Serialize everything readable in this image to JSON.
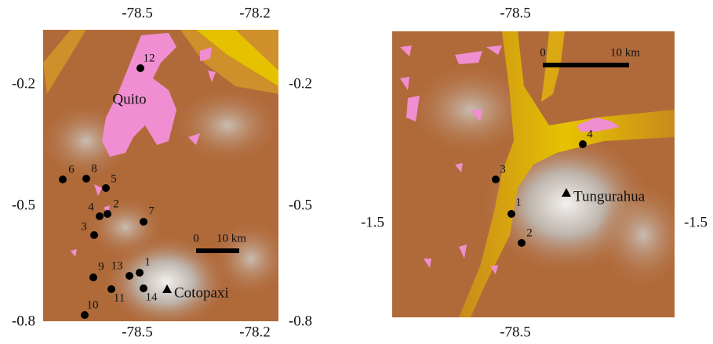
{
  "panels": [
    {
      "top_ticks": [
        "-78.5",
        "-78.2"
      ],
      "bottom_ticks": [
        "-78.5",
        "-78.2"
      ],
      "left_ticks": [
        "-0.2",
        "-0.5",
        "-0.8"
      ],
      "right_ticks": [
        "-0.2",
        "-0.5",
        "-0.8"
      ],
      "places": [
        "Quito",
        "Cotopaxi"
      ],
      "sites": [
        "12",
        "6",
        "8",
        "5",
        "4",
        "2",
        "3",
        "7",
        "9",
        "13",
        "1",
        "11",
        "14",
        "10"
      ],
      "scale": {
        "start": "0",
        "end": "10 km"
      }
    },
    {
      "top_ticks": [
        "-78.5"
      ],
      "bottom_ticks": [
        "-78.5"
      ],
      "left_ticks": [
        "-1.5"
      ],
      "right_ticks": [
        "-1.5"
      ],
      "places": [
        "Tungurahua"
      ],
      "sites": [
        "4",
        "3",
        "1",
        "2"
      ],
      "scale": {
        "start": "0",
        "end": "10 km"
      }
    }
  ]
}
